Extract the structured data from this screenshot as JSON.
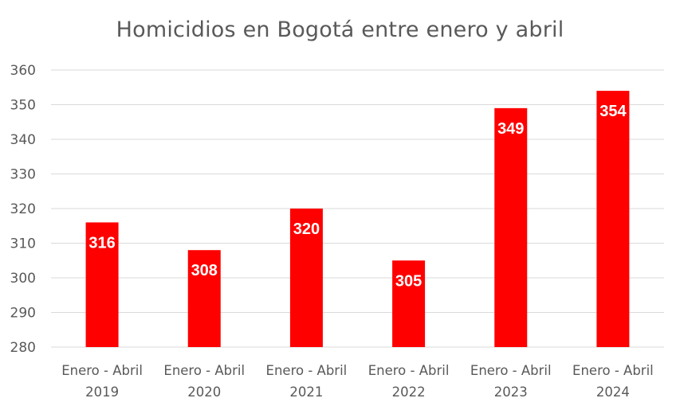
{
  "chart_data": {
    "type": "bar",
    "title": "Homicidios en Bogotá entre enero y abril",
    "categories": [
      [
        "Enero - Abril",
        "2019"
      ],
      [
        "Enero - Abril",
        "2020"
      ],
      [
        "Enero - Abril",
        "2021"
      ],
      [
        "Enero - Abril",
        "2022"
      ],
      [
        "Enero - Abril",
        "2023"
      ],
      [
        "Enero - Abril",
        "2024"
      ]
    ],
    "values": [
      316,
      308,
      320,
      305,
      349,
      354
    ],
    "data_labels": [
      "316",
      "308",
      "320",
      "305",
      "349",
      "354"
    ],
    "ylim": [
      280,
      360
    ],
    "yticks": [
      280,
      290,
      300,
      310,
      320,
      330,
      340,
      350,
      360
    ],
    "xlabel": "",
    "ylabel": "",
    "grid": true,
    "legend": "none",
    "colors": {
      "bar": "#ff0000",
      "grid": "#d9d9d9",
      "text": "#595959",
      "data_label": "#ffffff"
    }
  }
}
